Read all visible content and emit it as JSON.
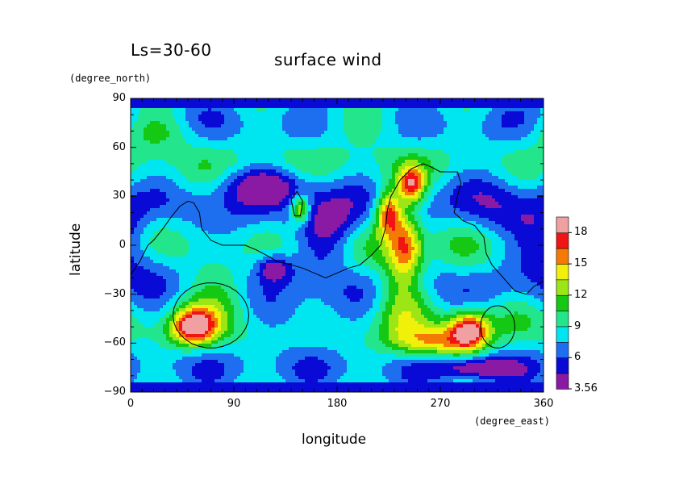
{
  "chart_data": {
    "type": "heatmap",
    "title": "surface wind",
    "subtitle": "Ls=30-60",
    "xlabel": "longitude",
    "ylabel": "latitude",
    "xunits": "(degree_east)",
    "yunits": "(degree_north)",
    "xlim": [
      0,
      360
    ],
    "ylim": [
      -90,
      90
    ],
    "xticks": [
      0,
      90,
      180,
      270,
      360
    ],
    "yticks": [
      90,
      60,
      30,
      0,
      -30,
      -60,
      -90
    ],
    "colorbar": {
      "levels": [
        3.56,
        4.5,
        6,
        7.5,
        9,
        10.5,
        12,
        13.5,
        15,
        16.5,
        18,
        19.5
      ],
      "labels": [
        "3.56",
        "6",
        "9",
        "12",
        "15",
        "18"
      ],
      "colors": [
        "#8a1aa3",
        "#0a0ad6",
        "#1e6ef0",
        "#00e6f0",
        "#23e68c",
        "#14c814",
        "#9be614",
        "#f0f00a",
        "#f57a05",
        "#f01414",
        "#f0a0a0"
      ]
    },
    "wind_centers": [
      {
        "lon": 55,
        "lat": -50,
        "value": 18
      },
      {
        "lon": 225,
        "lat": 20,
        "value": 17
      },
      {
        "lon": 245,
        "lat": 37,
        "value": 17
      },
      {
        "lon": 295,
        "lat": -52,
        "value": 18
      },
      {
        "lon": 240,
        "lat": 0,
        "value": 16
      },
      {
        "lon": 265,
        "lat": -60,
        "value": 14
      },
      {
        "lon": 148,
        "lat": 22,
        "value": 15
      },
      {
        "lon": 80,
        "lat": -15,
        "value": 12
      },
      {
        "lon": 125,
        "lat": -14,
        "value": 3.6
      },
      {
        "lon": 300,
        "lat": -75,
        "value": 3.6
      }
    ]
  }
}
